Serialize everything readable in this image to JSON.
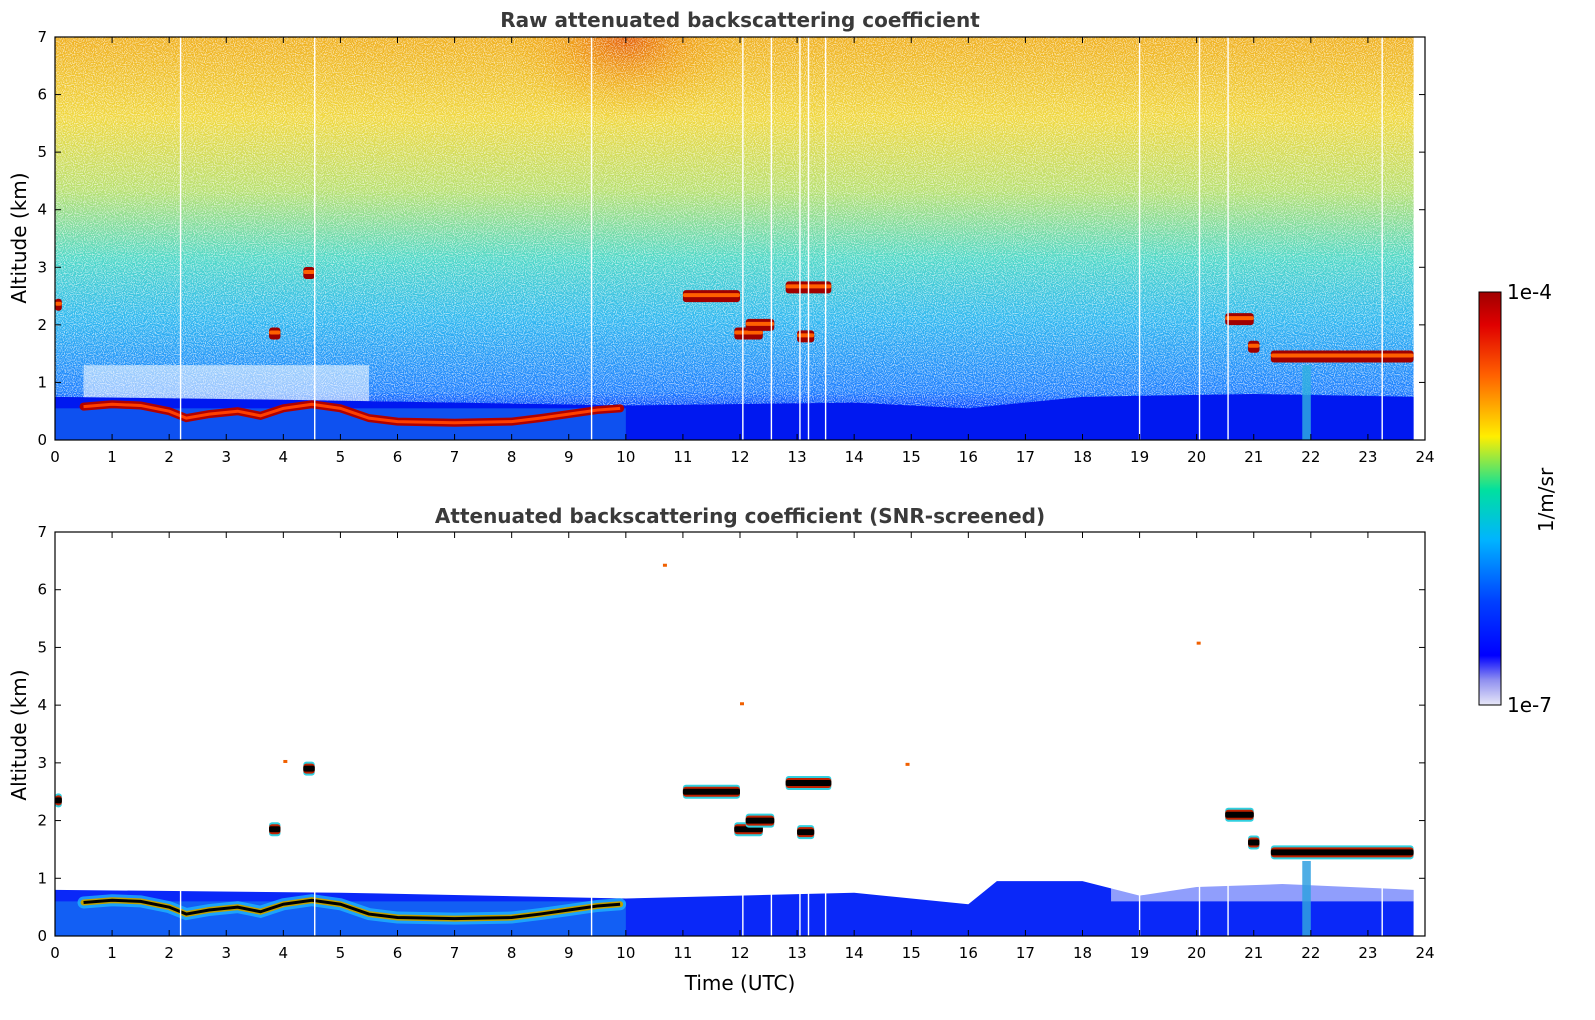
{
  "chart_data": [
    {
      "type": "heatmap",
      "title": "Raw attenuated backscattering coefficient",
      "xlabel": "",
      "ylabel": "Altitude (km)",
      "xlim": [
        0,
        24
      ],
      "ylim": [
        0,
        7
      ],
      "xticks": [
        "0",
        "1",
        "2",
        "3",
        "4",
        "5",
        "6",
        "7",
        "8",
        "9",
        "10",
        "11",
        "12",
        "13",
        "14",
        "15",
        "16",
        "17",
        "18",
        "19",
        "20",
        "21",
        "22",
        "23",
        "24"
      ],
      "yticks": [
        "0",
        "1",
        "2",
        "3",
        "4",
        "5",
        "6",
        "7"
      ],
      "data_end_time": 23.8,
      "boundary_layer_top_km": [
        [
          0.5,
          0.58
        ],
        [
          1.0,
          0.62
        ],
        [
          1.5,
          0.6
        ],
        [
          2.0,
          0.5
        ],
        [
          2.3,
          0.38
        ],
        [
          2.7,
          0.45
        ],
        [
          3.2,
          0.5
        ],
        [
          3.6,
          0.42
        ],
        [
          4.0,
          0.55
        ],
        [
          4.5,
          0.62
        ],
        [
          5.0,
          0.55
        ],
        [
          5.5,
          0.38
        ],
        [
          6.0,
          0.32
        ],
        [
          7.0,
          0.3
        ],
        [
          8.0,
          0.32
        ],
        [
          8.5,
          0.38
        ],
        [
          9.0,
          0.45
        ],
        [
          9.5,
          0.52
        ],
        [
          9.9,
          0.55
        ]
      ],
      "cloud_layers": [
        {
          "t0": 0.0,
          "t1": 0.12,
          "alt_km": 2.35
        },
        {
          "t0": 3.75,
          "t1": 3.95,
          "alt_km": 1.85
        },
        {
          "t0": 4.35,
          "t1": 4.55,
          "alt_km": 2.9
        },
        {
          "t0": 11.0,
          "t1": 12.0,
          "alt_km": 2.5
        },
        {
          "t0": 11.9,
          "t1": 12.4,
          "alt_km": 1.85
        },
        {
          "t0": 12.1,
          "t1": 12.6,
          "alt_km": 2.0
        },
        {
          "t0": 12.8,
          "t1": 13.6,
          "alt_km": 2.65
        },
        {
          "t0": 13.0,
          "t1": 13.3,
          "alt_km": 1.8
        },
        {
          "t0": 20.5,
          "t1": 21.0,
          "alt_km": 2.1
        },
        {
          "t0": 20.9,
          "t1": 21.1,
          "alt_km": 1.62
        },
        {
          "t0": 21.3,
          "t1": 23.8,
          "alt_km": 1.45
        }
      ],
      "missing_profile_times": [
        2.2,
        4.55,
        9.4,
        12.05,
        12.55,
        13.05,
        13.2,
        13.5,
        19.0,
        20.05,
        20.55,
        23.25
      ]
    },
    {
      "type": "heatmap",
      "title": "Attenuated backscattering coefficient (SNR-screened)",
      "xlabel": "Time (UTC)",
      "ylabel": "Altitude (km)",
      "xlim": [
        0,
        24
      ],
      "ylim": [
        0,
        7
      ],
      "xticks": [
        "0",
        "1",
        "2",
        "3",
        "4",
        "5",
        "6",
        "7",
        "8",
        "9",
        "10",
        "11",
        "12",
        "13",
        "14",
        "15",
        "16",
        "17",
        "18",
        "19",
        "20",
        "21",
        "22",
        "23",
        "24"
      ],
      "yticks": [
        "0",
        "1",
        "2",
        "3",
        "4",
        "5",
        "6",
        "7"
      ],
      "data_end_time": 23.8,
      "screened_signal_top_km": [
        [
          0,
          0.8
        ],
        [
          5,
          0.75
        ],
        [
          10,
          0.65
        ],
        [
          12,
          0.7
        ],
        [
          14,
          0.75
        ],
        [
          16,
          0.55
        ],
        [
          16.5,
          0.95
        ],
        [
          18,
          0.95
        ],
        [
          19,
          0.7
        ],
        [
          20,
          0.85
        ],
        [
          21.5,
          0.9
        ],
        [
          23.8,
          0.8
        ]
      ],
      "missing_profile_times": [
        2.2,
        4.55,
        9.4,
        12.05,
        12.55,
        13.05,
        13.2,
        13.5,
        19.0,
        20.05,
        20.55,
        23.25
      ]
    }
  ],
  "colorbar": {
    "label": "1/m/sr",
    "max_label": "1e-4",
    "min_label": "1e-7",
    "vmin": 1e-07,
    "vmax": 0.0001,
    "scale": "log",
    "colormap": "jet",
    "colors": [
      "#e8e8f8",
      "#0000ff",
      "#00b4ff",
      "#00e0a0",
      "#ffee00",
      "#ff6000",
      "#a00000"
    ]
  }
}
